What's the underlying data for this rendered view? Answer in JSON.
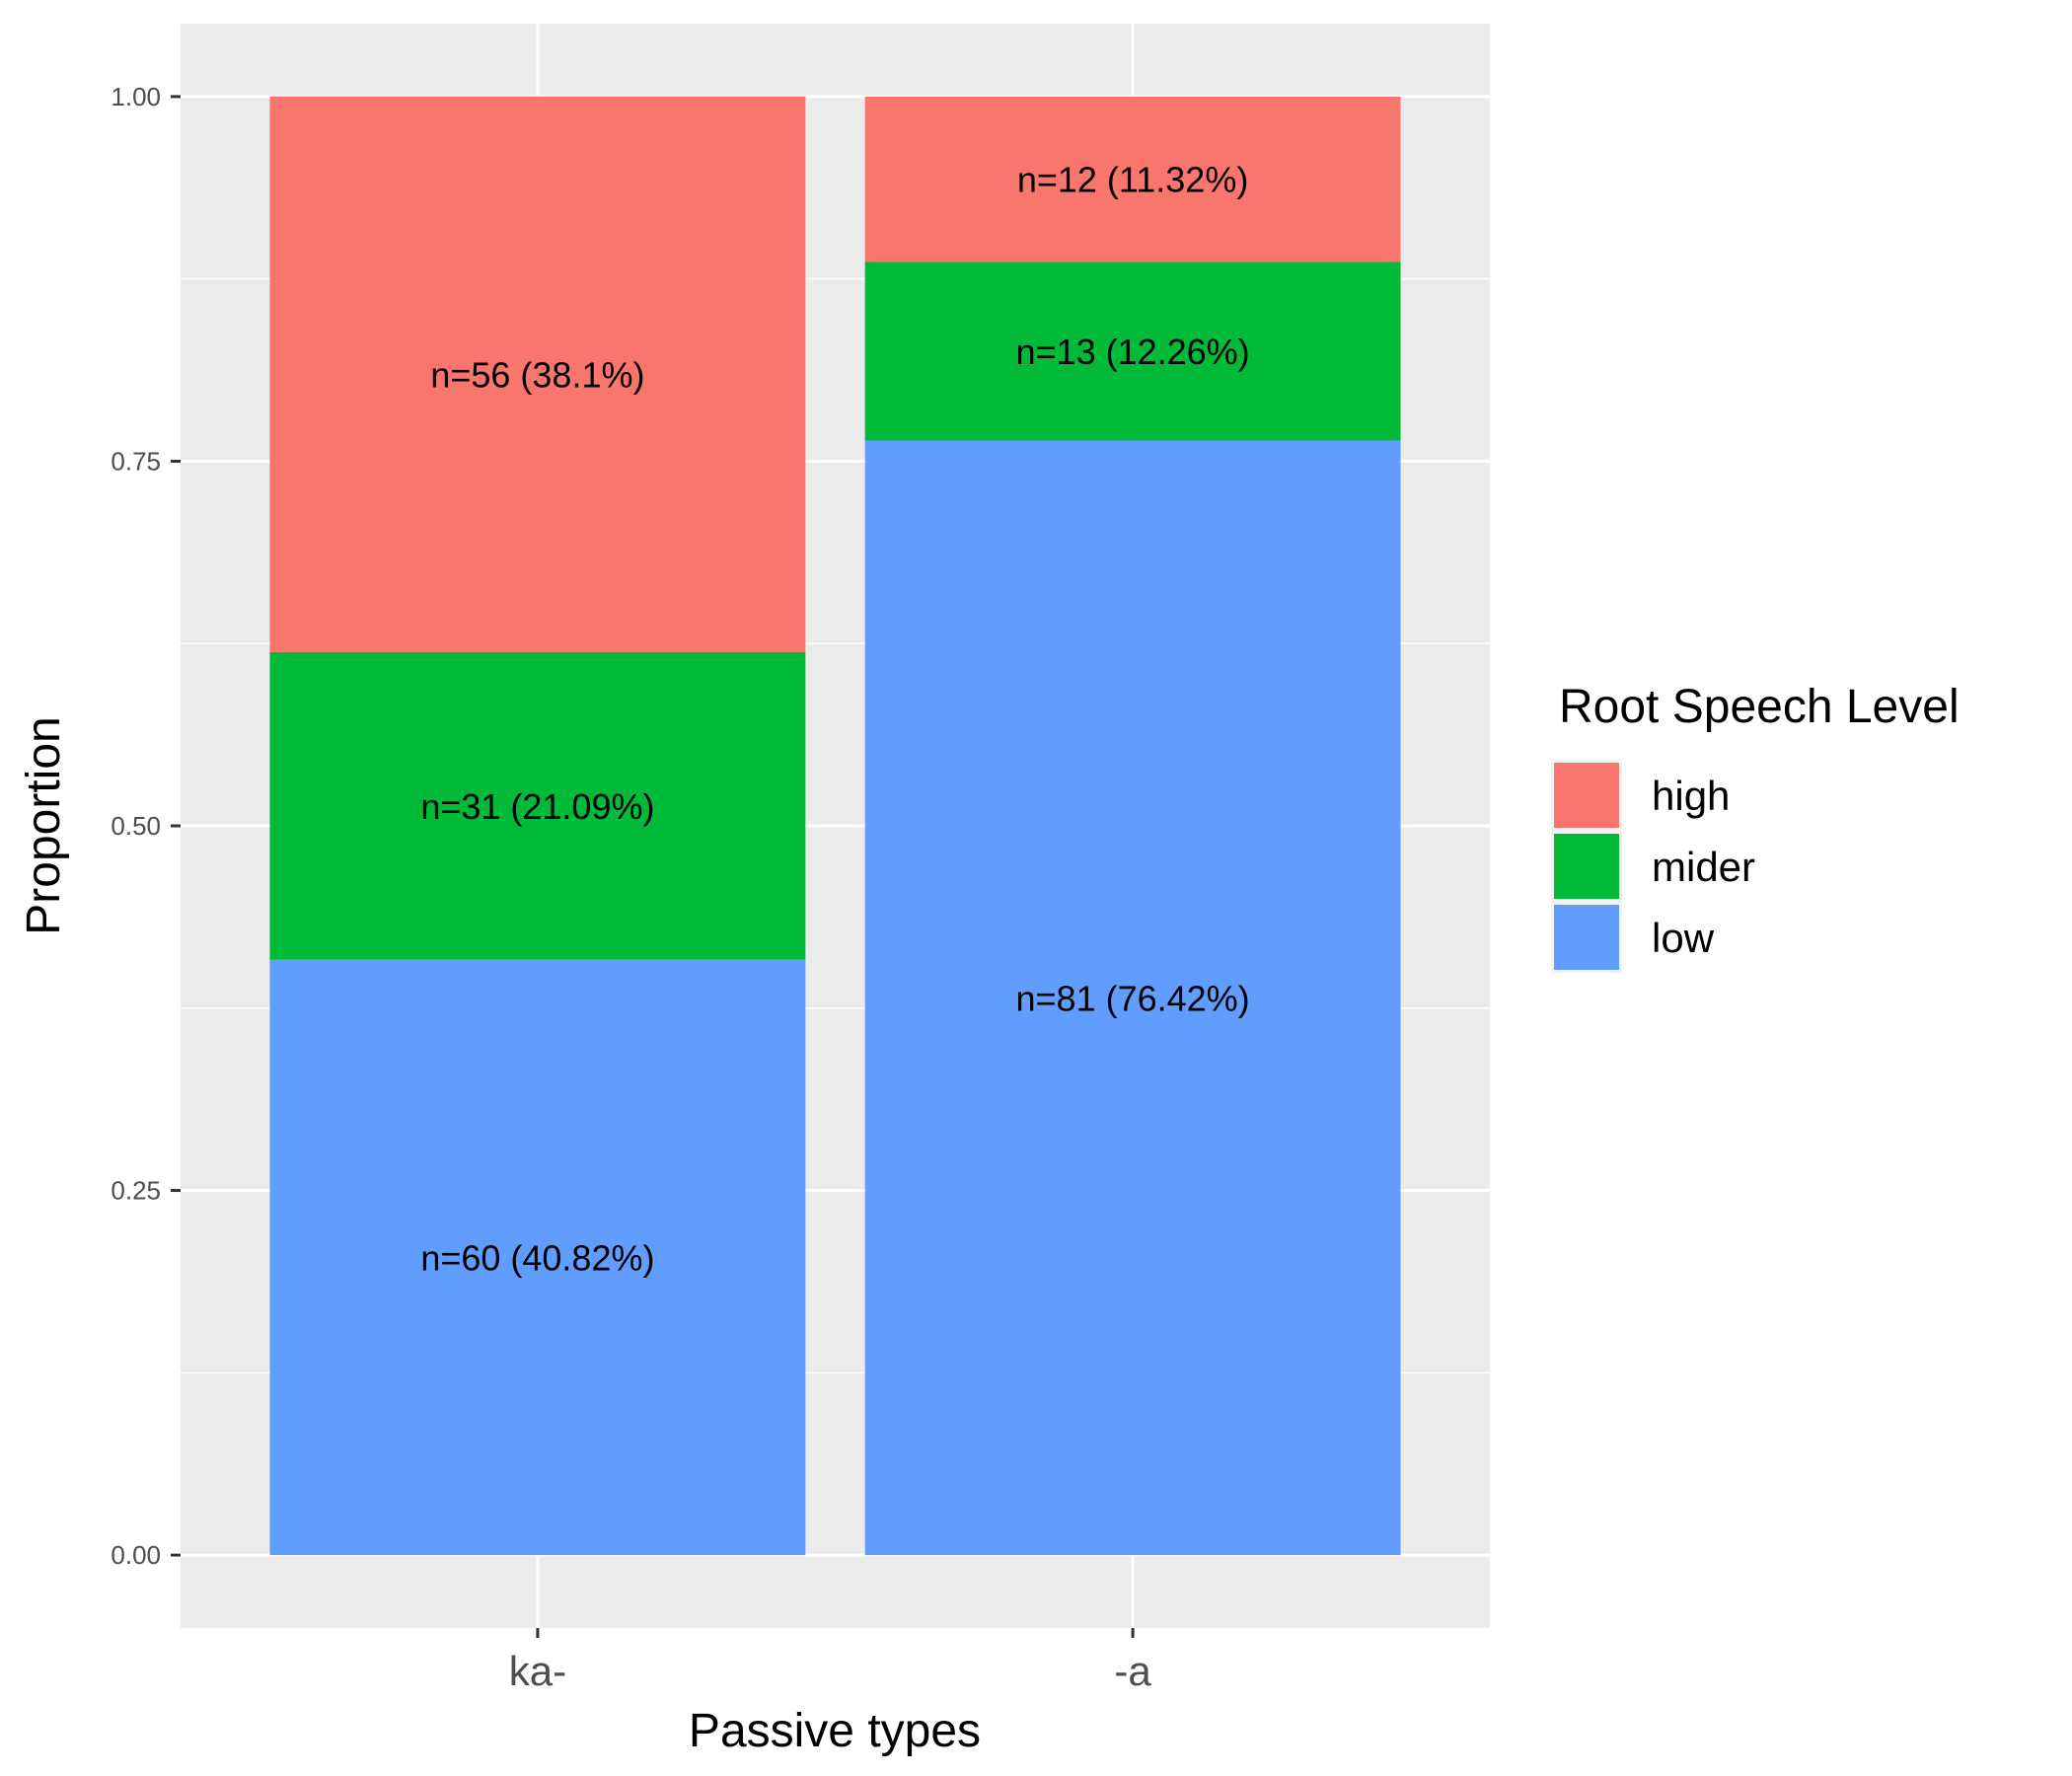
{
  "chart_data": {
    "type": "bar",
    "stacked": true,
    "categories": [
      "ka-",
      "-a"
    ],
    "series": [
      {
        "name": "low",
        "color": "#619CFF",
        "values": [
          0.4082,
          0.7642
        ],
        "labels": [
          "n=60 (40.82%)",
          "n=81 (76.42%)"
        ]
      },
      {
        "name": "mider",
        "color": "#00BA38",
        "values": [
          0.2109,
          0.1226
        ],
        "labels": [
          "n=31 (21.09%)",
          "n=13 (12.26%)"
        ]
      },
      {
        "name": "high",
        "color": "#F8766D",
        "values": [
          0.381,
          0.1132
        ],
        "labels": [
          "n=56 (38.1%)",
          "n=12 (11.32%)"
        ]
      }
    ],
    "legend_order": [
      "high",
      "mider",
      "low"
    ],
    "xlabel": "Passive types",
    "ylabel": "Proportion",
    "ylim": [
      -0.05,
      1.05
    ],
    "yticks": [
      "0.00",
      "0.25",
      "0.50",
      "0.75",
      "1.00"
    ],
    "ytick_values": [
      0,
      0.25,
      0.5,
      0.75,
      1
    ],
    "grid": true,
    "panel_background": "#EBEBEB",
    "legend_title": "Root Speech Level",
    "legend_position": "right"
  }
}
